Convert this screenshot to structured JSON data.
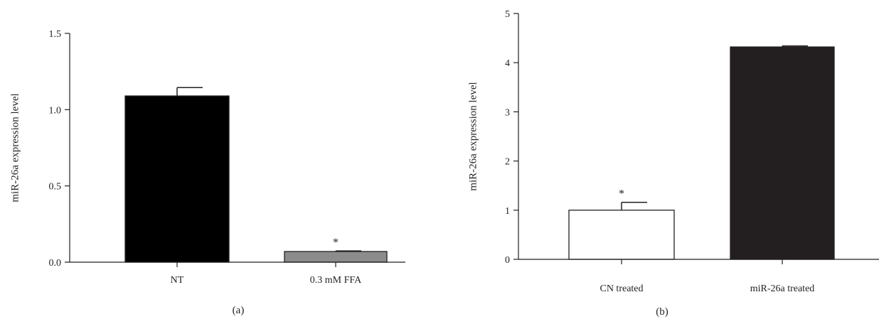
{
  "chart_data": [
    {
      "type": "bar",
      "panel_label": "(a)",
      "title": "",
      "xlabel": "",
      "ylabel": "miR-26a expression level",
      "ylim": [
        0,
        1.5
      ],
      "yticks": [
        0.0,
        0.5,
        1.0,
        1.5
      ],
      "ytick_labels": [
        "0.0",
        "0.5",
        "1.0",
        "1.5"
      ],
      "categories": [
        "NT",
        "0.3 mM FFA"
      ],
      "values": [
        1.09,
        0.07
      ],
      "errors": [
        0.055,
        0.004
      ],
      "bar_colors": [
        "#000000",
        "#8c8c8c"
      ],
      "annotations": [
        "",
        "*"
      ],
      "grid": false,
      "legend": "none"
    },
    {
      "type": "bar",
      "panel_label": "(b)",
      "title": "",
      "xlabel": "",
      "ylabel": "miR-26a expression level",
      "ylim": [
        0,
        5
      ],
      "yticks": [
        0,
        1,
        2,
        3,
        4,
        5
      ],
      "ytick_labels": [
        "0",
        "1",
        "2",
        "3",
        "4",
        "5"
      ],
      "categories": [
        "CN treated",
        "miR-26a treated"
      ],
      "values": [
        1.0,
        4.32
      ],
      "errors": [
        0.16,
        0.02
      ],
      "bar_colors": [
        "#ffffff",
        "#231f20"
      ],
      "annotations": [
        "*",
        ""
      ],
      "grid": false,
      "legend": "none"
    }
  ]
}
